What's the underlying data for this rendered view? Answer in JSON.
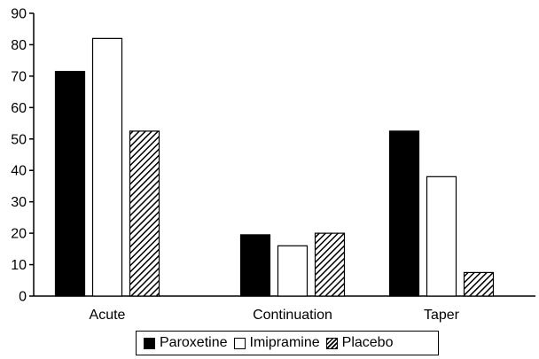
{
  "chart_data": {
    "type": "bar",
    "title": "",
    "xlabel": "",
    "ylabel": "",
    "categories": [
      "Acute",
      "Continuation",
      "Taper"
    ],
    "series": [
      {
        "name": "Paroxetine",
        "values": [
          71.5,
          19.5,
          52.5
        ],
        "fill": "solid"
      },
      {
        "name": "Imipramine",
        "values": [
          82,
          16,
          38
        ],
        "fill": "empty"
      },
      {
        "name": "Placebo",
        "values": [
          52.5,
          20,
          7.5
        ],
        "fill": "hatch"
      }
    ],
    "ylim": [
      0,
      90
    ],
    "yticks": [
      "0",
      "10",
      "20",
      "30",
      "40",
      "50",
      "60",
      "70",
      "80",
      "90"
    ],
    "grid": false,
    "legend_position": "bottom",
    "colors": {
      "bar_fill": "#000000",
      "bar_stroke": "#000000",
      "background": "#ffffff"
    }
  }
}
